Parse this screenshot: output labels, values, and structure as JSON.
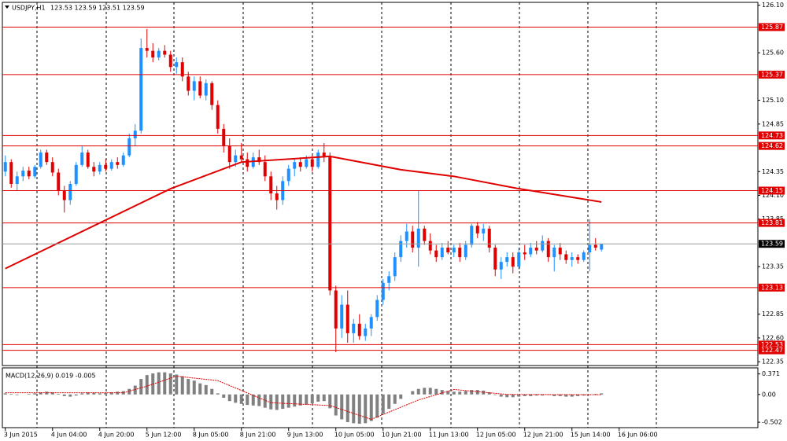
{
  "chart_data": [
    {
      "type": "candlestick",
      "symbol": "USDJPY,H1",
      "header_values": "123.53 123.59 123.51 123.59",
      "up_color": "#1e90ff",
      "down_color": "#e00000",
      "xlim": [
        -0.5,
        127.5
      ],
      "ylim": [
        122.31,
        126.13
      ],
      "xticks": [
        {
          "value": 0,
          "label": "3 Jun 2015"
        },
        {
          "value": 8,
          "label": "4 Jun 04:00"
        },
        {
          "value": 16,
          "label": "4 Jun 20:00"
        },
        {
          "value": 24,
          "label": "5 Jun 12:00"
        },
        {
          "value": 32,
          "label": "8 Jun 05:00"
        },
        {
          "value": 40,
          "label": "8 Jun 21:00"
        },
        {
          "value": 48,
          "label": "9 Jun 13:00"
        },
        {
          "value": 56,
          "label": "10 Jun 05:00"
        },
        {
          "value": 64,
          "label": "10 Jun 21:00"
        },
        {
          "value": 72,
          "label": "11 Jun 13:00"
        },
        {
          "value": 80,
          "label": "12 Jun 05:00"
        },
        {
          "value": 88,
          "label": "12 Jun 21:00"
        },
        {
          "value": 96,
          "label": "15 Jun 14:00"
        },
        {
          "value": 104,
          "label": "16 Jun 06:00"
        }
      ],
      "yticks": [
        {
          "value": 126.1,
          "label": "126.10"
        },
        {
          "value": 125.6,
          "label": "125.60"
        },
        {
          "value": 125.1,
          "label": "125.10"
        },
        124.85,
        124.35,
        {
          "value": 124.1,
          "label": "124.10"
        },
        123.85,
        123.35,
        122.85,
        {
          "value": 122.6,
          "label": "122.60"
        },
        122.35
      ],
      "levels": [
        125.87,
        125.37,
        124.73,
        124.62,
        124.15,
        123.81,
        123.13,
        122.53,
        122.47
      ],
      "level_color": "#e00000",
      "price_line": 123.59,
      "ma": {
        "color": "#e00000",
        "x": [
          0,
          28,
          40,
          55,
          67,
          76,
          87,
          101
        ],
        "values": [
          123.33,
          124.17,
          124.45,
          124.51,
          124.37,
          124.3,
          124.17,
          124.03
        ]
      },
      "candles": [
        [
          124.35,
          124.52,
          124.3,
          124.45
        ],
        [
          124.45,
          124.48,
          124.18,
          124.22
        ],
        [
          124.22,
          124.35,
          124.15,
          124.3
        ],
        [
          124.3,
          124.4,
          124.25,
          124.36
        ],
        [
          124.36,
          124.4,
          124.27,
          124.3
        ],
        [
          124.3,
          124.42,
          124.28,
          124.4
        ],
        [
          124.4,
          124.58,
          124.38,
          124.55
        ],
        [
          124.55,
          124.58,
          124.42,
          124.45
        ],
        [
          124.45,
          124.5,
          124.3,
          124.34
        ],
        [
          124.34,
          124.38,
          124.1,
          124.15
        ],
        [
          124.15,
          124.2,
          123.92,
          124.05
        ],
        [
          124.05,
          124.25,
          124,
          124.22
        ],
        [
          124.22,
          124.45,
          124.2,
          124.42
        ],
        [
          124.42,
          124.62,
          124.4,
          124.55
        ],
        [
          124.55,
          124.58,
          124.38,
          124.4
        ],
        [
          124.4,
          124.45,
          124.3,
          124.35
        ],
        [
          124.35,
          124.45,
          124.32,
          124.42
        ],
        [
          124.42,
          124.48,
          124.35,
          124.38
        ],
        [
          124.38,
          124.48,
          124.36,
          124.45
        ],
        [
          124.45,
          124.5,
          124.38,
          124.42
        ],
        [
          124.42,
          124.55,
          124.4,
          124.52
        ],
        [
          124.52,
          124.75,
          124.5,
          124.7
        ],
        [
          124.7,
          124.85,
          124.62,
          124.78
        ],
        [
          124.78,
          125.75,
          124.75,
          125.65
        ],
        [
          125.65,
          125.85,
          125.55,
          125.62
        ],
        [
          125.62,
          125.7,
          125.5,
          125.55
        ],
        [
          125.55,
          125.65,
          125.52,
          125.62
        ],
        [
          125.62,
          125.68,
          125.55,
          125.58
        ],
        [
          125.58,
          125.62,
          125.4,
          125.45
        ],
        [
          125.45,
          125.55,
          125.38,
          125.5
        ],
        [
          125.5,
          125.55,
          125.3,
          125.35
        ],
        [
          125.35,
          125.4,
          125.15,
          125.2
        ],
        [
          125.2,
          125.35,
          125.1,
          125.3
        ],
        [
          125.3,
          125.35,
          125.12,
          125.15
        ],
        [
          125.15,
          125.32,
          125.1,
          125.28
        ],
        [
          125.28,
          125.3,
          125,
          125.05
        ],
        [
          125.05,
          125.1,
          124.75,
          124.8
        ],
        [
          124.8,
          124.85,
          124.55,
          124.62
        ],
        [
          124.62,
          124.7,
          124.38,
          124.45
        ],
        [
          124.45,
          124.58,
          124.4,
          124.52
        ],
        [
          124.52,
          124.65,
          124.45,
          124.48
        ],
        [
          124.48,
          124.55,
          124.35,
          124.4
        ],
        [
          124.4,
          124.55,
          124.38,
          124.5
        ],
        [
          124.5,
          124.58,
          124.42,
          124.45
        ],
        [
          124.45,
          124.52,
          124.25,
          124.3
        ],
        [
          124.3,
          124.35,
          124.05,
          124.12
        ],
        [
          124.12,
          124.2,
          123.95,
          124.05
        ],
        [
          124.05,
          124.3,
          124,
          124.25
        ],
        [
          124.25,
          124.42,
          124.2,
          124.38
        ],
        [
          124.38,
          124.48,
          124.3,
          124.45
        ],
        [
          124.45,
          124.5,
          124.35,
          124.4
        ],
        [
          124.4,
          124.52,
          124.38,
          124.48
        ],
        [
          124.48,
          124.52,
          124.35,
          124.4
        ],
        [
          124.4,
          124.58,
          124.38,
          124.55
        ],
        [
          124.55,
          124.65,
          124.45,
          124.5
        ],
        [
          124.5,
          124.55,
          123.05,
          123.1
        ],
        [
          123.1,
          123.15,
          122.45,
          122.7
        ],
        [
          122.7,
          123.05,
          122.6,
          122.95
        ],
        [
          122.95,
          123.1,
          122.55,
          122.65
        ],
        [
          122.65,
          122.8,
          122.55,
          122.75
        ],
        [
          122.75,
          122.85,
          122.58,
          122.62
        ],
        [
          122.62,
          122.75,
          122.57,
          122.7
        ],
        [
          122.7,
          122.85,
          122.62,
          122.82
        ],
        [
          122.82,
          123.05,
          122.78,
          123
        ],
        [
          123,
          123.22,
          122.95,
          123.18
        ],
        [
          123.18,
          123.3,
          123.1,
          123.25
        ],
        [
          123.25,
          123.5,
          123.2,
          123.45
        ],
        [
          123.45,
          123.68,
          123.4,
          123.62
        ],
        [
          123.62,
          123.8,
          123.55,
          123.72
        ],
        [
          123.72,
          123.78,
          123.5,
          123.55
        ],
        [
          123.55,
          124.15,
          123.35,
          123.75
        ],
        [
          123.75,
          123.78,
          123.58,
          123.62
        ],
        [
          123.62,
          123.7,
          123.48,
          123.52
        ],
        [
          123.52,
          123.58,
          123.4,
          123.45
        ],
        [
          123.45,
          123.6,
          123.42,
          123.55
        ],
        [
          123.55,
          123.62,
          123.48,
          123.5
        ],
        [
          123.5,
          123.58,
          123.45,
          123.55
        ],
        [
          123.55,
          123.6,
          123.4,
          123.45
        ],
        [
          123.45,
          123.62,
          123.42,
          123.58
        ],
        [
          123.58,
          123.8,
          123.55,
          123.78
        ],
        [
          123.78,
          123.82,
          123.65,
          123.7
        ],
        [
          123.7,
          123.8,
          123.62,
          123.75
        ],
        [
          123.75,
          123.78,
          123.5,
          123.55
        ],
        [
          123.55,
          123.58,
          123.25,
          123.32
        ],
        [
          123.32,
          123.45,
          123.22,
          123.4
        ],
        [
          123.4,
          123.5,
          123.35,
          123.45
        ],
        [
          123.45,
          123.5,
          123.28,
          123.35
        ],
        [
          123.35,
          123.55,
          123.32,
          123.5
        ],
        [
          123.5,
          123.58,
          123.42,
          123.48
        ],
        [
          123.48,
          123.6,
          123.45,
          123.55
        ],
        [
          123.55,
          123.62,
          123.48,
          123.52
        ],
        [
          123.52,
          123.68,
          123.5,
          123.62
        ],
        [
          123.62,
          123.65,
          123.4,
          123.45
        ],
        [
          123.45,
          123.58,
          123.3,
          123.55
        ],
        [
          123.55,
          123.6,
          123.42,
          123.48
        ],
        [
          123.48,
          123.52,
          123.38,
          123.42
        ],
        [
          123.42,
          123.5,
          123.35,
          123.45
        ],
        [
          123.45,
          123.48,
          123.38,
          123.42
        ],
        [
          123.42,
          123.52,
          123.4,
          123.5
        ],
        [
          123.5,
          123.85,
          123.3,
          123.58
        ],
        [
          123.58,
          123.65,
          123.52,
          123.55
        ],
        [
          123.53,
          123.59,
          123.51,
          123.59
        ]
      ]
    },
    {
      "type": "bar",
      "label": "MACD(12,26,9) 0.019 -0.005",
      "color": "#808080",
      "xlim": [
        -0.5,
        127.5
      ],
      "ylim": [
        -0.6,
        0.48
      ],
      "yticks": [
        0.371,
        {
          "value": 0,
          "label": "0.00"
        },
        -0.502
      ],
      "values": [
        0.02,
        0.01,
        -0.01,
        0,
        0.01,
        0.02,
        0.04,
        0.05,
        0.04,
        0.01,
        -0.03,
        -0.04,
        -0.02,
        0.02,
        0.04,
        0.03,
        0.02,
        0.03,
        0.04,
        0.05,
        0.06,
        0.1,
        0.16,
        0.28,
        0.35,
        0.38,
        0.4,
        0.4,
        0.38,
        0.36,
        0.33,
        0.28,
        0.25,
        0.2,
        0.17,
        0.1,
        0.02,
        -0.06,
        -0.12,
        -0.15,
        -0.17,
        -0.19,
        -0.2,
        -0.21,
        -0.24,
        -0.27,
        -0.28,
        -0.26,
        -0.24,
        -0.22,
        -0.2,
        -0.18,
        -0.16,
        -0.13,
        -0.12,
        -0.25,
        -0.38,
        -0.45,
        -0.5,
        -0.52,
        -0.53,
        -0.52,
        -0.48,
        -0.42,
        -0.35,
        -0.26,
        -0.17,
        -0.08,
        0,
        0.06,
        0.1,
        0.12,
        0.12,
        0.1,
        0.08,
        0.06,
        0.05,
        0.05,
        0.06,
        0.08,
        0.08,
        0.07,
        0.04,
        -0.01,
        -0.04,
        -0.05,
        -0.05,
        -0.04,
        -0.03,
        -0.03,
        -0.02,
        -0.02,
        -0.01,
        -0.03,
        -0.03,
        -0.04,
        -0.04,
        -0.03,
        -0.02,
        -0.01,
        0.01,
        0.02
      ],
      "signal": {
        "color": "#e00000",
        "x": [
          0,
          20,
          24,
          29,
          36,
          45,
          55,
          62,
          70,
          76,
          85,
          101
        ],
        "values": [
          0.03,
          0.03,
          0.15,
          0.33,
          0.25,
          -0.15,
          -0.2,
          -0.45,
          -0.1,
          0.09,
          0,
          -0.005
        ]
      }
    }
  ]
}
